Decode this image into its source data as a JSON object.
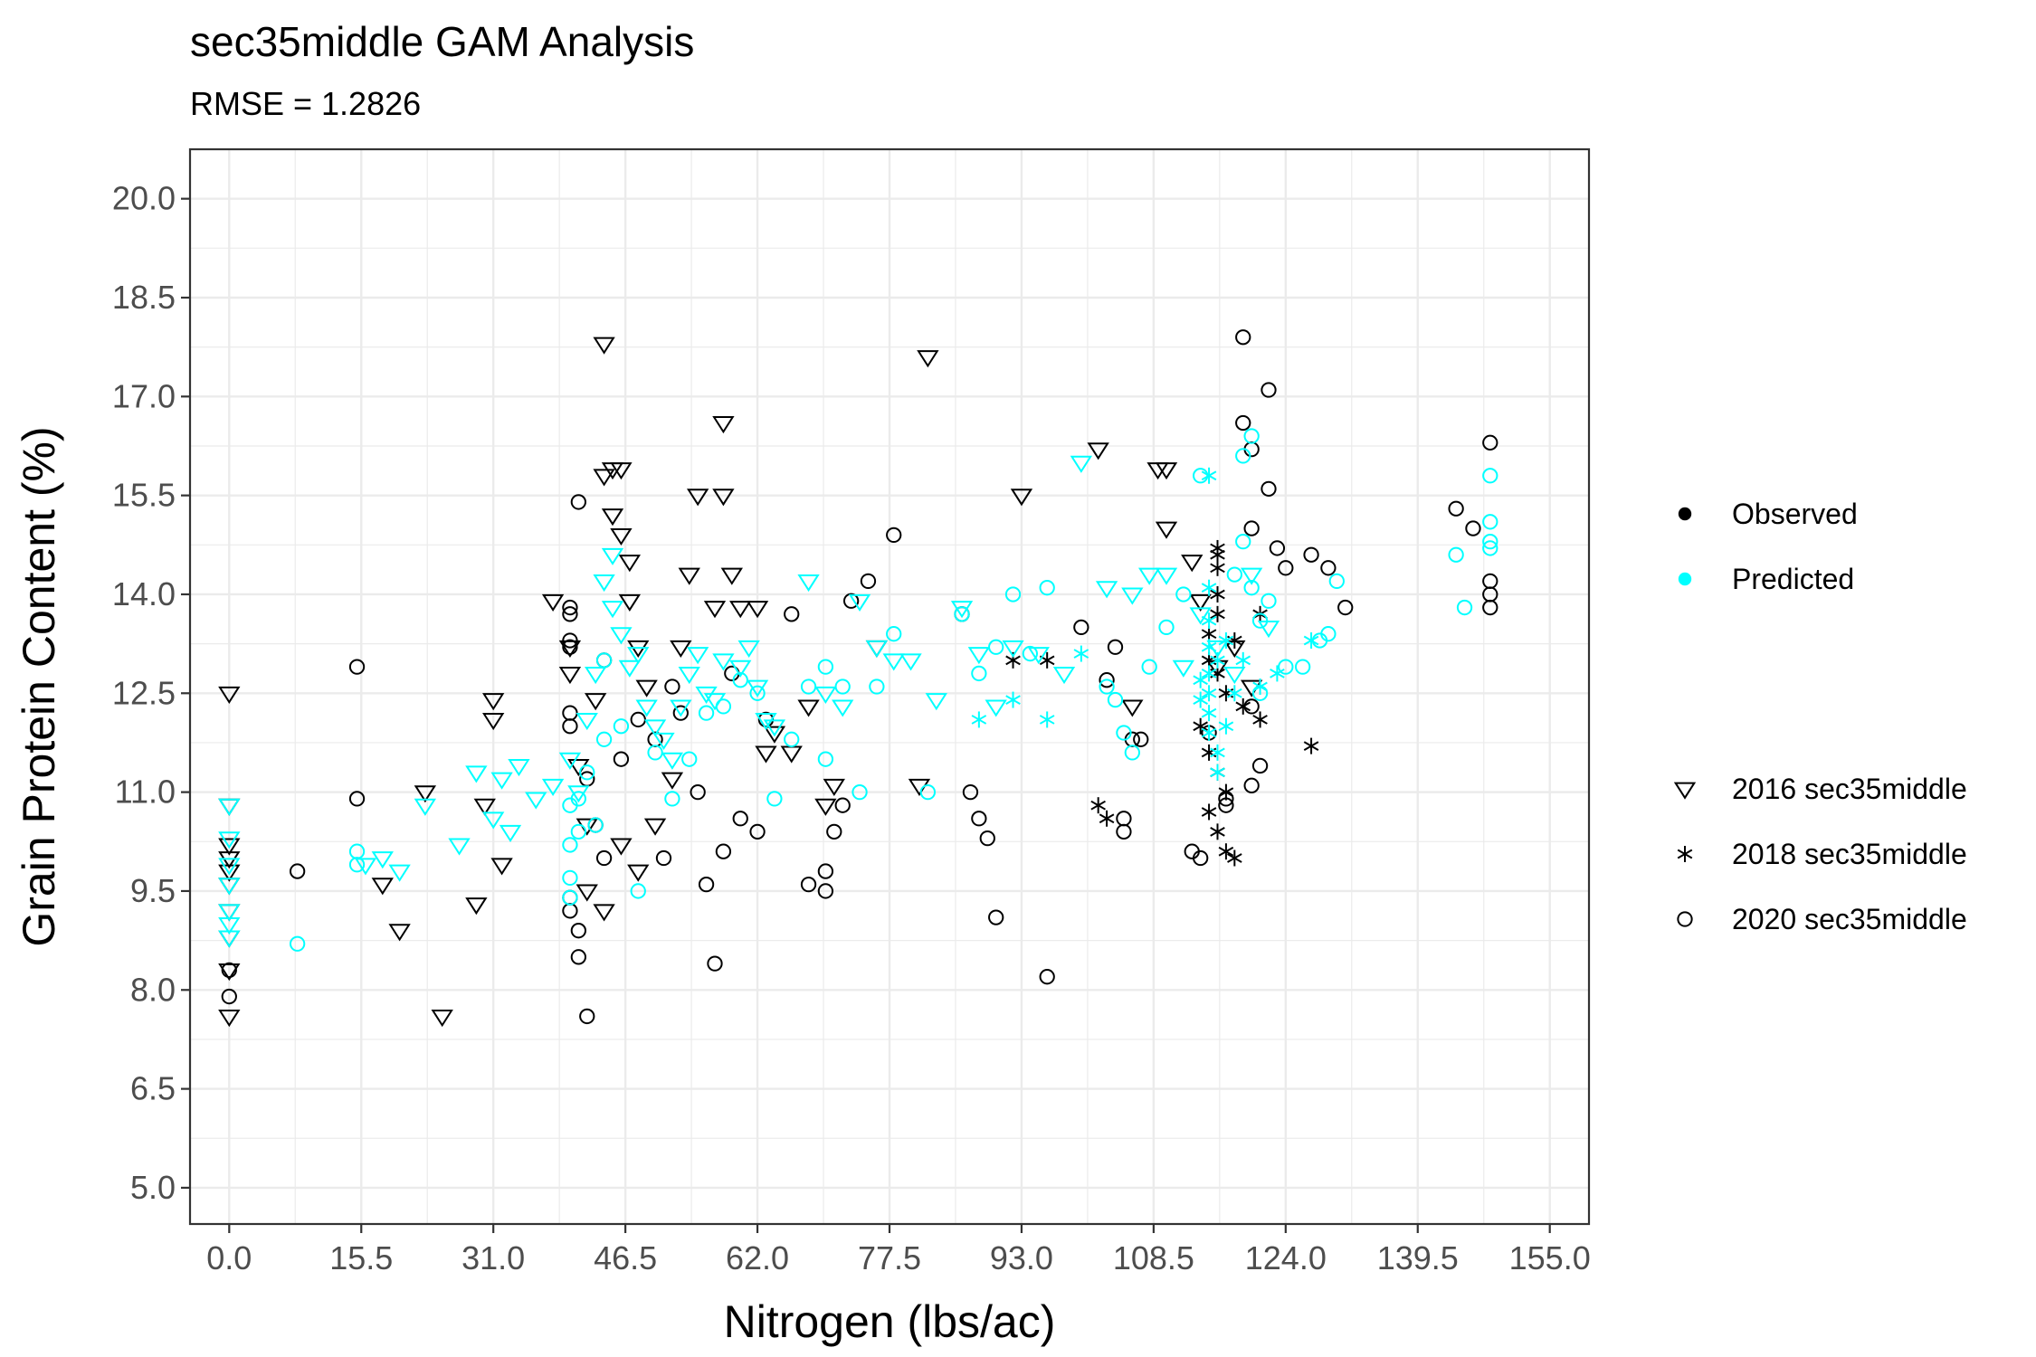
{
  "chart_data": {
    "type": "scatter",
    "title": "sec35middle GAM Analysis",
    "subtitle": "RMSE = 1.2826",
    "xlabel": "Nitrogen (lbs/ac)",
    "ylabel": "Grain Protein Content (%)",
    "xlim": [
      -4.6,
      159.6
    ],
    "ylim": [
      4.45,
      20.75
    ],
    "x_ticks": [
      "0.0",
      "15.5",
      "31.0",
      "46.5",
      "62.0",
      "77.5",
      "93.0",
      "108.5",
      "124.0",
      "139.5",
      "155.0"
    ],
    "y_ticks": [
      "5.0",
      "6.5",
      "8.0",
      "9.5",
      "11.0",
      "12.5",
      "14.0",
      "15.5",
      "17.0",
      "18.5",
      "20.0"
    ],
    "grid": true,
    "legend_placement": "right",
    "legend": {
      "colour": [
        {
          "label": "Observed",
          "color": "#000000"
        },
        {
          "label": "Predicted",
          "color": "#00FFFF"
        }
      ],
      "shape": [
        {
          "label": "2016 sec35middle",
          "shape": "triangle-down"
        },
        {
          "label": "2018 sec35middle",
          "shape": "asterisk"
        },
        {
          "label": "2020 sec35middle",
          "shape": "circle"
        }
      ]
    },
    "series": [
      {
        "name": "Observed",
        "year": "2016 sec35middle",
        "color": "#000000",
        "shape": "triangle-down",
        "x": [
          0,
          0,
          0,
          0,
          0,
          0,
          0,
          0,
          0,
          0,
          25,
          23,
          20,
          18,
          31,
          31,
          30,
          32,
          29,
          38,
          40,
          40,
          41,
          42,
          43,
          44,
          44,
          45,
          45,
          46,
          46,
          47,
          47,
          48,
          49,
          42,
          44,
          46,
          48,
          50,
          52,
          53,
          54,
          55,
          57,
          58,
          58,
          59,
          60,
          62,
          63,
          64,
          66,
          68,
          70,
          82,
          76,
          81,
          71,
          93,
          102,
          109,
          110,
          110,
          113,
          114,
          118,
          116,
          120,
          106
        ],
        "y": [
          12.5,
          10.8,
          10.2,
          10.0,
          9.8,
          9.6,
          9.2,
          8.8,
          8.3,
          7.6,
          7.6,
          11.0,
          8.9,
          9.6,
          12.4,
          12.1,
          10.8,
          9.9,
          9.3,
          13.9,
          13.2,
          12.8,
          11.4,
          10.5,
          12.4,
          17.8,
          15.8,
          15.9,
          15.2,
          15.9,
          14.9,
          14.5,
          13.9,
          13.2,
          12.6,
          9.5,
          9.2,
          10.2,
          9.8,
          10.5,
          11.2,
          13.2,
          14.3,
          15.5,
          13.8,
          16.6,
          15.5,
          14.3,
          13.8,
          13.8,
          11.6,
          11.9,
          11.6,
          12.3,
          10.8,
          17.6,
          13.2,
          11.1,
          11.1,
          15.5,
          16.2,
          15.9,
          15.9,
          15.0,
          14.5,
          13.9,
          13.2,
          12.9,
          12.6,
          12.3
        ]
      },
      {
        "name": "Observed",
        "year": "2018 sec35middle",
        "color": "#000000",
        "shape": "asterisk",
        "x": [
          116,
          116,
          116,
          116,
          116,
          115,
          115,
          116,
          117,
          114,
          115,
          116,
          117,
          115,
          116,
          117,
          118,
          119,
          121,
          118,
          121,
          127,
          96,
          92,
          102,
          103
        ],
        "y": [
          14.7,
          14.6,
          14.4,
          14.0,
          13.7,
          13.4,
          13.0,
          12.8,
          12.5,
          12.0,
          11.6,
          11.3,
          11.0,
          10.7,
          10.4,
          10.1,
          10.0,
          12.3,
          13.7,
          13.3,
          12.1,
          11.7,
          13.0,
          13.0,
          10.8,
          10.6
        ]
      },
      {
        "name": "Observed",
        "year": "2020 sec35middle",
        "color": "#000000",
        "shape": "circle",
        "x": [
          0,
          0,
          15,
          15,
          8,
          40,
          40,
          40,
          40,
          40,
          40,
          40,
          40,
          41,
          41,
          41,
          42,
          42,
          43,
          44,
          44,
          46,
          48,
          50,
          51,
          52,
          53,
          55,
          56,
          57,
          58,
          59,
          60,
          62,
          63,
          66,
          68,
          70,
          70,
          71,
          72,
          73,
          75,
          78,
          86,
          87,
          88,
          89,
          90,
          96,
          100,
          103,
          104,
          105,
          105,
          106,
          107,
          113,
          114,
          115,
          117,
          117,
          119,
          119,
          120,
          120,
          120,
          120,
          121,
          122,
          122,
          123,
          124,
          127,
          129,
          131,
          144,
          146,
          148,
          148,
          148,
          148
        ],
        "y": [
          8.3,
          7.9,
          12.9,
          10.9,
          9.8,
          13.8,
          13.7,
          13.3,
          13.2,
          12.2,
          12.0,
          9.4,
          9.2,
          15.4,
          8.9,
          8.5,
          7.6,
          11.2,
          10.5,
          10.0,
          13.0,
          11.5,
          12.1,
          11.8,
          10.0,
          12.6,
          12.2,
          11.0,
          9.6,
          8.4,
          10.1,
          12.8,
          10.6,
          10.4,
          12.1,
          13.7,
          9.6,
          9.8,
          9.5,
          10.4,
          10.8,
          13.9,
          14.2,
          14.9,
          13.7,
          11.0,
          10.6,
          10.3,
          9.1,
          8.2,
          13.5,
          12.7,
          13.2,
          10.6,
          10.4,
          11.8,
          11.8,
          10.1,
          10.0,
          11.9,
          10.9,
          10.8,
          17.9,
          16.6,
          16.2,
          15.0,
          12.3,
          11.1,
          11.4,
          17.1,
          15.6,
          14.7,
          14.4,
          14.6,
          14.4,
          13.8,
          15.3,
          15.0,
          16.3,
          14.2,
          14.0,
          13.8
        ]
      },
      {
        "name": "Predicted",
        "year": "2016 sec35middle",
        "color": "#00FFFF",
        "shape": "triangle-down",
        "x": [
          0,
          0,
          0,
          0,
          0,
          0,
          0,
          18,
          16,
          20,
          23,
          27,
          29,
          31,
          32,
          33,
          34,
          36,
          38,
          40,
          41,
          42,
          43,
          44,
          45,
          45,
          46,
          47,
          48,
          49,
          50,
          51,
          52,
          53,
          54,
          55,
          56,
          57,
          58,
          60,
          61,
          62,
          63,
          64,
          68,
          70,
          72,
          74,
          76,
          78,
          80,
          83,
          86,
          88,
          90,
          92,
          95,
          98,
          100,
          103,
          106,
          108,
          110,
          112,
          114,
          116,
          118,
          120,
          122
        ],
        "y": [
          10.8,
          10.3,
          9.9,
          9.6,
          9.2,
          9.0,
          8.8,
          10.0,
          9.9,
          9.8,
          10.8,
          10.2,
          11.3,
          10.6,
          11.2,
          10.4,
          11.4,
          10.9,
          11.1,
          11.5,
          11.0,
          12.1,
          12.8,
          14.2,
          14.6,
          13.8,
          13.4,
          12.9,
          13.1,
          12.3,
          12.0,
          11.8,
          11.5,
          12.3,
          12.8,
          13.1,
          12.5,
          12.4,
          13.0,
          12.9,
          13.2,
          12.6,
          12.1,
          12.0,
          14.2,
          12.5,
          12.3,
          13.9,
          13.2,
          13.0,
          13.0,
          12.4,
          13.8,
          13.1,
          12.3,
          13.2,
          13.1,
          12.8,
          16.0,
          14.1,
          14.0,
          14.3,
          14.3,
          12.9,
          13.7,
          13.2,
          12.8,
          14.3,
          13.5
        ]
      },
      {
        "name": "Predicted",
        "year": "2018 sec35middle",
        "color": "#00FFFF",
        "shape": "asterisk",
        "x": [
          115,
          115,
          115,
          115,
          115,
          115,
          115,
          115,
          116,
          116,
          116,
          114,
          114,
          117,
          117,
          118,
          119,
          121,
          123,
          127,
          88,
          92,
          96,
          100
        ],
        "y": [
          15.8,
          14.1,
          13.6,
          13.2,
          12.8,
          12.5,
          12.2,
          11.9,
          11.6,
          11.3,
          13.0,
          12.4,
          12.7,
          12.0,
          13.3,
          12.5,
          13.0,
          12.6,
          12.8,
          13.3,
          12.1,
          12.4,
          12.1,
          13.1
        ]
      },
      {
        "name": "Predicted",
        "year": "2020 sec35middle",
        "color": "#00FFFF",
        "shape": "circle",
        "x": [
          8,
          15,
          15,
          40,
          40,
          40,
          40,
          41,
          41,
          42,
          43,
          44,
          44,
          46,
          48,
          50,
          52,
          54,
          56,
          58,
          60,
          62,
          64,
          66,
          68,
          70,
          70,
          72,
          74,
          76,
          78,
          82,
          86,
          88,
          90,
          92,
          94,
          96,
          103,
          104,
          105,
          106,
          108,
          110,
          112,
          114,
          118,
          119,
          119,
          120,
          120,
          121,
          121,
          122,
          124,
          126,
          128,
          129,
          130,
          144,
          145,
          148,
          148,
          148,
          148
        ],
        "y": [
          8.7,
          10.1,
          9.9,
          10.8,
          10.2,
          9.7,
          9.4,
          10.4,
          10.9,
          11.3,
          10.5,
          11.8,
          13.0,
          12.0,
          9.5,
          11.6,
          10.9,
          11.5,
          12.2,
          12.3,
          12.7,
          12.5,
          10.9,
          11.8,
          12.6,
          12.9,
          11.5,
          12.6,
          11.0,
          12.6,
          13.4,
          11.0,
          13.7,
          12.8,
          13.2,
          14.0,
          13.1,
          14.1,
          12.6,
          12.4,
          11.9,
          11.6,
          12.9,
          13.5,
          14.0,
          15.8,
          14.3,
          16.1,
          14.8,
          14.1,
          16.4,
          13.6,
          12.5,
          13.9,
          12.9,
          12.9,
          13.3,
          13.4,
          14.2,
          14.6,
          13.8,
          15.8,
          15.1,
          14.8,
          14.7
        ]
      }
    ]
  }
}
